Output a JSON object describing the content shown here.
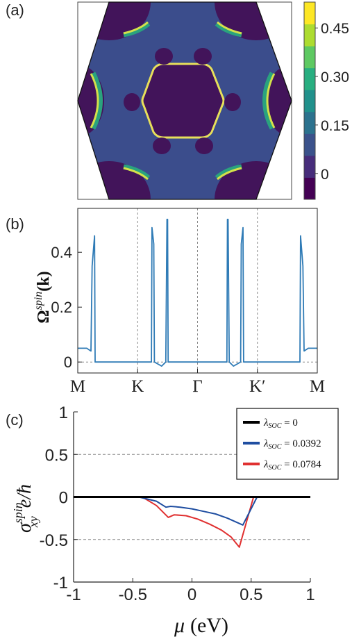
{
  "chart_data": [
    {
      "panel": "(a)",
      "type": "heatmap",
      "colorbar": {
        "ticks": [
          "0.45",
          "0.30",
          "0.15",
          "0"
        ],
        "tick_values": [
          0.45,
          0.3,
          0.15,
          0
        ],
        "range": [
          -0.08,
          0.53
        ],
        "colors": [
          "#440154",
          "#472d7b",
          "#3b528b",
          "#2c728e",
          "#21918c",
          "#28ae80",
          "#5ec962",
          "#addc30",
          "#fde725"
        ]
      },
      "colors": {
        "background": "#3b4d8c",
        "low": "#42145a",
        "ring_outer": "#2aa37e",
        "ring_inner": "#d4e14a"
      }
    },
    {
      "panel": "(b)",
      "type": "line",
      "ylabel_main": "Ω",
      "ylabel_sup": "spin",
      "ylabel_paren": "(k)",
      "xticks": [
        {
          "label": "M",
          "x": 0
        },
        {
          "label": "K",
          "x": 1
        },
        {
          "label": "Γ",
          "x": 2
        },
        {
          "label": "K′",
          "x": 3
        },
        {
          "label": "M",
          "x": 4
        }
      ],
      "yticks": [
        {
          "label": "0",
          "value": 0
        },
        {
          "label": "0.2",
          "value": 0.2
        },
        {
          "label": "0.4",
          "value": 0.4
        }
      ],
      "xlim": [
        0,
        4
      ],
      "ylim": [
        -0.04,
        0.56
      ],
      "series": [
        {
          "color": "#2f7bb6",
          "points": [
            [
              0,
              0.05
            ],
            [
              0.15,
              0.05
            ],
            [
              0.22,
              0.04
            ],
            [
              0.24,
              0.35
            ],
            [
              0.28,
              0.46
            ],
            [
              0.29,
              0
            ],
            [
              1.23,
              0
            ],
            [
              1.24,
              0.49
            ],
            [
              1.27,
              0.43
            ],
            [
              1.28,
              0
            ],
            [
              1.4,
              -0.015
            ],
            [
              1.47,
              0
            ],
            [
              1.49,
              0.52
            ],
            [
              1.5,
              0.52
            ],
            [
              1.51,
              0
            ],
            [
              2.49,
              0
            ],
            [
              2.5,
              0.52
            ],
            [
              2.51,
              0.52
            ],
            [
              2.53,
              0
            ],
            [
              2.6,
              -0.015
            ],
            [
              2.72,
              0
            ],
            [
              2.73,
              0.43
            ],
            [
              2.76,
              0.49
            ],
            [
              2.77,
              0
            ],
            [
              3.71,
              0
            ],
            [
              3.72,
              0.46
            ],
            [
              3.76,
              0.35
            ],
            [
              3.78,
              0.04
            ],
            [
              3.85,
              0.05
            ],
            [
              4,
              0.05
            ]
          ]
        }
      ]
    },
    {
      "panel": "(c)",
      "type": "line",
      "ylabel_main": "σ",
      "ylabel_sup": "spin",
      "ylabel_sub": "xy",
      "ylabel_unit": "e/ħ",
      "xlabel_mu": "μ",
      "xlabel_unit": "(eV)",
      "xlim": [
        -1,
        1
      ],
      "ylim": [
        -1,
        1
      ],
      "xticks": [
        {
          "label": "-1",
          "value": -1
        },
        {
          "label": "-0.5",
          "value": -0.5
        },
        {
          "label": "0",
          "value": 0
        },
        {
          "label": "0.5",
          "value": 0.5
        },
        {
          "label": "1",
          "value": 1
        }
      ],
      "yticks": [
        {
          "label": "1",
          "value": 1
        },
        {
          "label": "0.5",
          "value": 0.5
        },
        {
          "label": "0",
          "value": 0
        },
        {
          "label": "-0.5",
          "value": -0.5
        },
        {
          "label": "-1",
          "value": -1
        }
      ],
      "dashed_lines": [
        0.5,
        -0.5
      ],
      "series": [
        {
          "legend_lambda": "λ",
          "legend_sub": "SOC",
          "legend_value": " = 0",
          "color": "#000000",
          "points": [
            [
              -1,
              0
            ],
            [
              1,
              0
            ]
          ]
        },
        {
          "legend_lambda": "λ",
          "legend_sub": "SOC",
          "legend_value": " = 0.0392",
          "color": "#1f4ea1",
          "points": [
            [
              -1,
              0
            ],
            [
              -0.45,
              0
            ],
            [
              -0.3,
              -0.05
            ],
            [
              -0.22,
              -0.12
            ],
            [
              -0.18,
              -0.11
            ],
            [
              -0.1,
              -0.12
            ],
            [
              0,
              -0.14
            ],
            [
              0.1,
              -0.17
            ],
            [
              0.2,
              -0.2
            ],
            [
              0.3,
              -0.25
            ],
            [
              0.43,
              -0.33
            ],
            [
              0.55,
              0
            ],
            [
              1,
              0
            ]
          ]
        },
        {
          "legend_lambda": "λ",
          "legend_sub": "SOC",
          "legend_value": " = 0.0784",
          "color": "#e03030",
          "points": [
            [
              -1,
              0
            ],
            [
              -0.42,
              0
            ],
            [
              -0.3,
              -0.1
            ],
            [
              -0.2,
              -0.24
            ],
            [
              -0.15,
              -0.21
            ],
            [
              -0.05,
              -0.22
            ],
            [
              0.05,
              -0.26
            ],
            [
              0.15,
              -0.32
            ],
            [
              0.25,
              -0.39
            ],
            [
              0.33,
              -0.47
            ],
            [
              0.4,
              -0.59
            ],
            [
              0.52,
              0
            ],
            [
              1,
              0
            ]
          ]
        }
      ]
    }
  ]
}
